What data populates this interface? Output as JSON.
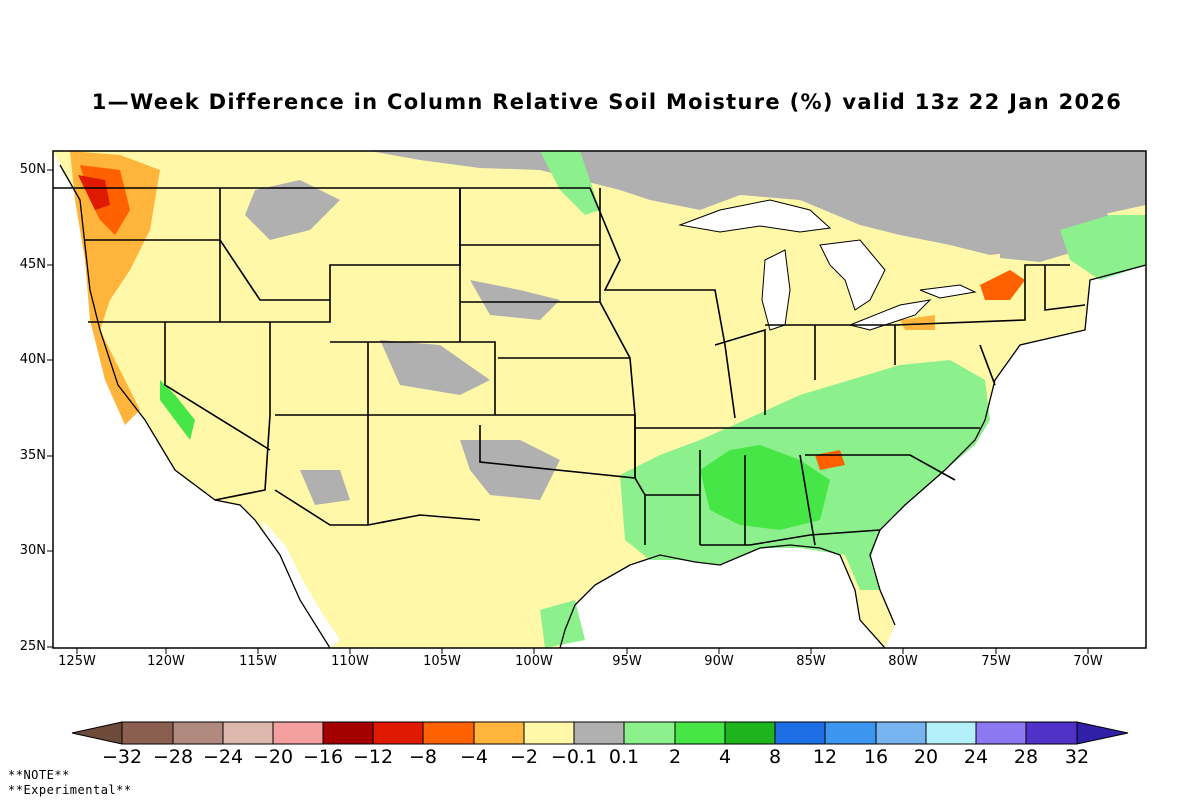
{
  "title": "1—Week Difference in Column Relative Soil Moisture (%) valid 13z 22 Jan 2026",
  "map": {
    "region": "contiguous-united-states",
    "lat_range": [
      25,
      51
    ],
    "lon_range": [
      -126,
      -67
    ],
    "lat_labels": [
      "50N",
      "45N",
      "40N",
      "35N",
      "30N",
      "25N"
    ],
    "lon_labels": [
      "125W",
      "120W",
      "115W",
      "110W",
      "105W",
      "100W",
      "95W",
      "90W",
      "85W",
      "80W",
      "75W",
      "70W"
    ],
    "background_color": "#fff8a8",
    "water_color": "#ffffff"
  },
  "colorbar": {
    "labels": [
      "−32",
      "−28",
      "−24",
      "−20",
      "−16",
      "−12",
      "−8",
      "−4",
      "−2",
      "−0.1",
      "0.1",
      "2",
      "4",
      "8",
      "12",
      "16",
      "20",
      "24",
      "28",
      "32"
    ],
    "colors": [
      "#6e4a3a",
      "#8b5f50",
      "#b08a7e",
      "#dcb8ad",
      "#f4a0a0",
      "#a50000",
      "#e01a00",
      "#ff6000",
      "#ffb43c",
      "#fff8a8",
      "#b0b0b0",
      "#8cf08c",
      "#46e646",
      "#1eb41e",
      "#1e6ee6",
      "#3c96f0",
      "#78b4f0",
      "#b4f0fa",
      "#8c78f0",
      "#5032c8",
      "#3020a8"
    ]
  },
  "notes": {
    "line1": "**NOTE**",
    "line2": "**Experimental**"
  }
}
